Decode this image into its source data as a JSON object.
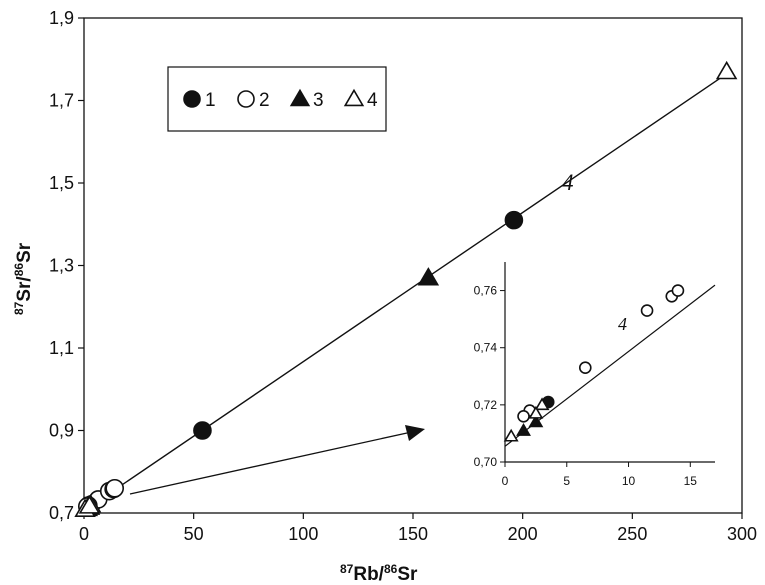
{
  "chart_data": {
    "type": "scatter",
    "xlabel": {
      "pre": "87",
      "a": "Rb/",
      "mid": "86",
      "b": "Sr"
    },
    "ylabel": {
      "pre": "87",
      "a": "Sr/",
      "mid": "86",
      "b": "Sr"
    },
    "xlim": [
      0,
      300
    ],
    "ylim": [
      0.7,
      1.9
    ],
    "xticks": [
      0,
      50,
      100,
      150,
      200,
      250,
      300
    ],
    "xtick_labels": [
      "0",
      "50",
      "100",
      "150",
      "200",
      "250",
      "300"
    ],
    "yticks": [
      0.7,
      0.9,
      1.1,
      1.3,
      1.5,
      1.7,
      1.9
    ],
    "ytick_labels": [
      "0,7",
      "0,9",
      "1,1",
      "1,3",
      "1,5",
      "1,7",
      "1,9"
    ],
    "grid": false,
    "legend_position": "top-left",
    "series": [
      {
        "name": "1",
        "marker": "filled-circle",
        "x": [
          54,
          196,
          3.5
        ],
        "y": [
          0.9,
          1.41,
          0.721
        ]
      },
      {
        "name": "2",
        "marker": "open-circle",
        "x": [
          6.5,
          11.5,
          13.5,
          14.0,
          2.0,
          1.5
        ],
        "y": [
          0.733,
          0.753,
          0.758,
          0.76,
          0.718,
          0.716
        ]
      },
      {
        "name": "3",
        "marker": "filled-triangle",
        "x": [
          157,
          2.5,
          1.5
        ],
        "y": [
          1.27,
          0.714,
          0.711
        ]
      },
      {
        "name": "4",
        "marker": "open-triangle",
        "x": [
          293,
          0.5,
          3.0,
          2.5
        ],
        "y": [
          1.77,
          0.709,
          0.72,
          0.717
        ]
      }
    ],
    "line": {
      "x": [
        0,
        295
      ],
      "y": [
        0.7055,
        1.7719
      ]
    },
    "line_label": "4",
    "inset": {
      "xlim": [
        0,
        17
      ],
      "ylim": [
        0.7,
        0.77
      ],
      "xticks": [
        0,
        5,
        10,
        15
      ],
      "xtick_labels": [
        "0",
        "5",
        "10",
        "15"
      ],
      "yticks": [
        0.7,
        0.72,
        0.74,
        0.76
      ],
      "ytick_labels": [
        "0,70",
        "0,72",
        "0,74",
        "0,76"
      ],
      "line_label": "4",
      "line": {
        "x": [
          0,
          17
        ],
        "y": [
          0.7055,
          0.7619
        ]
      }
    }
  },
  "colors": {
    "ink": "#111111",
    "background": "#ffffff"
  }
}
